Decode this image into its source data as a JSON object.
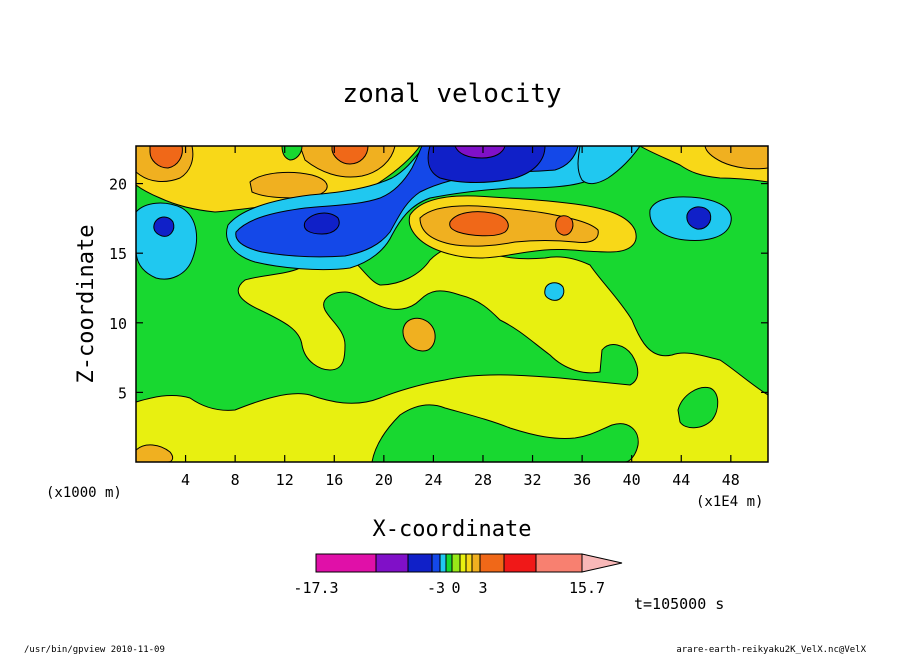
{
  "chart_data": {
    "type": "heatmap",
    "title": "zonal velocity",
    "xlabel": "X-coordinate",
    "ylabel": "Z-coordinate",
    "x_unit": "(x1E4 m)",
    "y_unit": "(x1000 m)",
    "xlim": [
      0,
      51
    ],
    "ylim": [
      0,
      22.7
    ],
    "x_ticks": [
      "4",
      "8",
      "12",
      "16",
      "20",
      "24",
      "28",
      "32",
      "36",
      "40",
      "44",
      "48"
    ],
    "y_ticks": [
      "5",
      "10",
      "15",
      "20"
    ],
    "colorbar": {
      "tick_labels": [
        "-17.3",
        "-3",
        "0",
        "3",
        "15.7"
      ],
      "colors": [
        "#e010a8",
        "#8010c8",
        "#1020c8",
        "#1448e8",
        "#20c8f0",
        "#18d830",
        "#98e818",
        "#e8f010",
        "#f8d818",
        "#f0b020",
        "#f06818",
        "#f01818",
        "#f88070",
        "#f8b8b8"
      ]
    },
    "regions": [
      {
        "level": "weak-positive",
        "color": "#e8f010",
        "description": "yellow background"
      },
      {
        "level": "weak-negative",
        "color": "#18d830",
        "description": "green regions"
      },
      {
        "level": "moderate-negative",
        "color": "#20c8f0",
        "description": "cyan regions"
      },
      {
        "level": "strong-negative",
        "color": "#1020c8",
        "description": "blue jets"
      },
      {
        "level": "positive",
        "color": "#f0b020",
        "description": "orange regions"
      }
    ]
  },
  "annotations": {
    "time": "t=105000 s",
    "footer_left": "/usr/bin/gpview   2010-11-09",
    "footer_right": "arare-earth-reikyaku2K_VelX.nc@VelX"
  }
}
